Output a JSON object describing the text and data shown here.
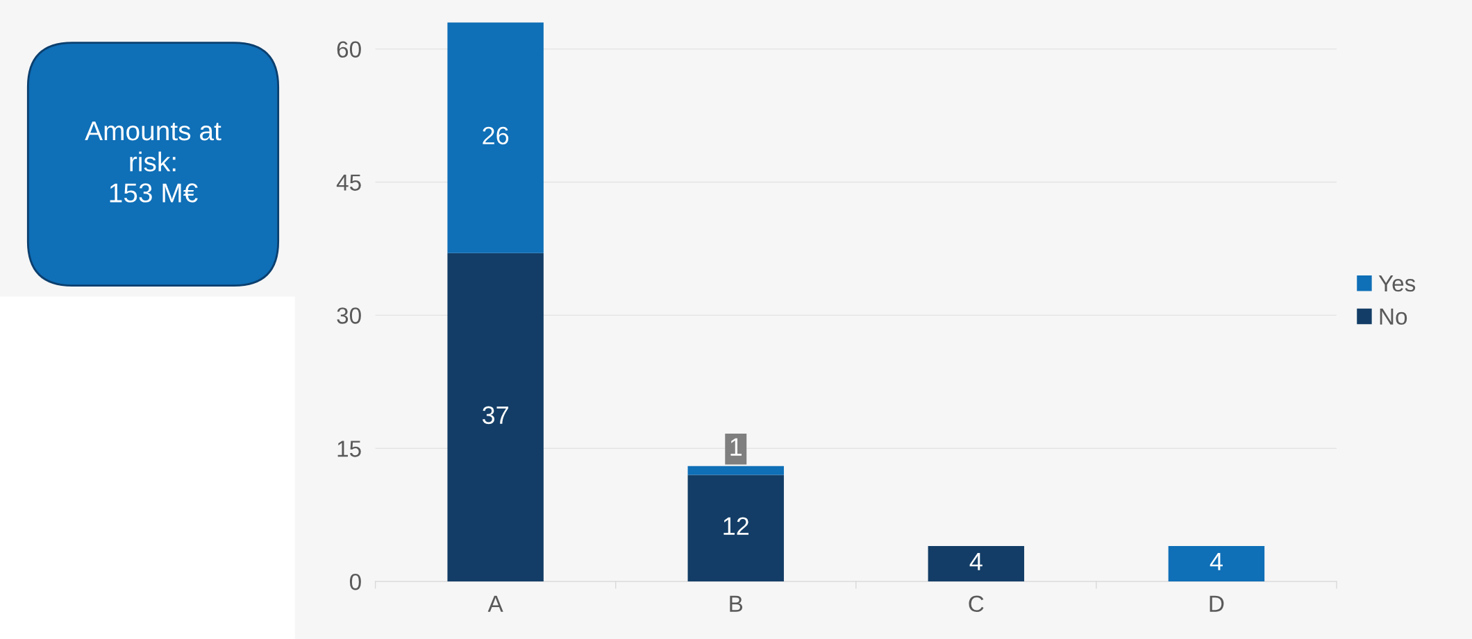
{
  "chart_data": {
    "type": "bar",
    "stacked": true,
    "categories": [
      "A",
      "B",
      "C",
      "D"
    ],
    "series": [
      {
        "name": "No",
        "color": "#133d66",
        "values": [
          37,
          12,
          4,
          0
        ],
        "value_labels": [
          "37",
          "12",
          "4",
          null
        ]
      },
      {
        "name": "Yes",
        "color": "#0f6fb7",
        "values": [
          26,
          1,
          0,
          4
        ],
        "value_labels": [
          "26",
          "1",
          null,
          "4"
        ]
      }
    ],
    "ylim": [
      0,
      63
    ],
    "yticks": [
      0,
      15,
      30,
      45,
      60
    ],
    "grid": "y",
    "legend": "right",
    "annotations": [
      "Amounts at\nrisk:\n153 M€"
    ]
  }
}
